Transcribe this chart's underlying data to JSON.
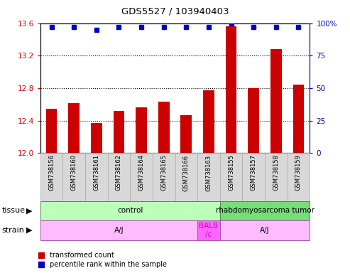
{
  "title": "GDS5527 / 103940403",
  "samples": [
    "GSM738156",
    "GSM738160",
    "GSM738161",
    "GSM738162",
    "GSM738164",
    "GSM738165",
    "GSM738166",
    "GSM738163",
    "GSM738155",
    "GSM738157",
    "GSM738158",
    "GSM738159"
  ],
  "transformed_counts": [
    12.55,
    12.62,
    12.37,
    12.52,
    12.56,
    12.63,
    12.47,
    12.77,
    13.56,
    12.8,
    13.28,
    12.84
  ],
  "percentile_ranks": [
    97,
    97,
    95,
    97,
    97,
    97,
    97,
    97,
    100,
    97,
    97,
    97
  ],
  "ylim_left": [
    12.0,
    13.6
  ],
  "ylim_right": [
    0,
    100
  ],
  "yticks_left": [
    12.0,
    12.4,
    12.8,
    13.2,
    13.6
  ],
  "yticks_right": [
    0,
    25,
    50,
    75,
    100
  ],
  "bar_color": "#cc0000",
  "dot_color": "#0000cc",
  "tissue_groups": [
    {
      "label": "control",
      "start": 0,
      "end": 8,
      "color": "#bbffbb"
    },
    {
      "label": "rhabdomyosarcoma tumor",
      "start": 8,
      "end": 12,
      "color": "#77dd77"
    }
  ],
  "strain_groups": [
    {
      "label": "A/J",
      "start": 0,
      "end": 7,
      "color": "#ffbbff"
    },
    {
      "label": "BALB\n/c",
      "start": 7,
      "end": 8,
      "color": "#ff66ff"
    },
    {
      "label": "A/J",
      "start": 8,
      "end": 12,
      "color": "#ffbbff"
    }
  ],
  "tissue_label": "tissue",
  "strain_label": "strain",
  "legend_items": [
    {
      "label": "transformed count",
      "color": "#cc0000"
    },
    {
      "label": "percentile rank within the sample",
      "color": "#0000cc"
    }
  ],
  "background_color": "#ffffff",
  "plot_bg_color": "#ffffff",
  "sample_box_color": "#d8d8d8",
  "sample_box_edge": "#aaaaaa"
}
